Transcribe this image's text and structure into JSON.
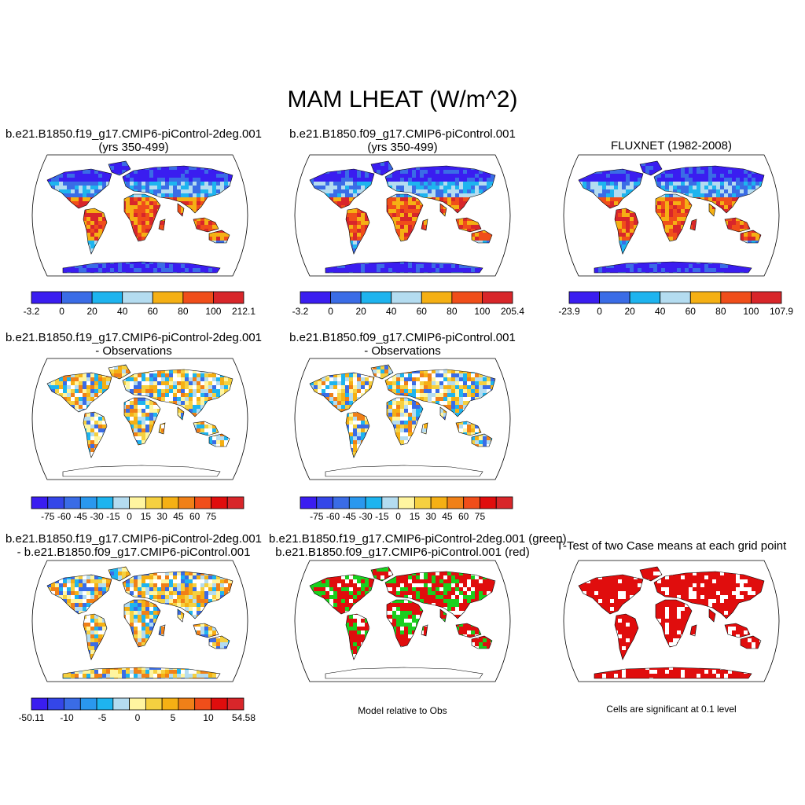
{
  "title": "MAM LHEAT (W/m^2)",
  "panels": [
    {
      "id": "case1",
      "title_line1": "b.e21.B1850.f19_g17.CMIP6-piControl-2deg.001",
      "title_line2": "(yrs 350-499)",
      "field": "absolute",
      "colorbar": {
        "colors": [
          "#3a1df0",
          "#3a6ce6",
          "#1eb4ef",
          "#b4dcf0",
          "#f5b014",
          "#f04e1a",
          "#d8262a"
        ],
        "labels": [
          "-3.2",
          "0",
          "20",
          "40",
          "60",
          "80",
          "100",
          "212.1"
        ]
      }
    },
    {
      "id": "case2",
      "title_line1": "b.e21.B1850.f09_g17.CMIP6-piControl.001",
      "title_line2": "(yrs 350-499)",
      "field": "absolute",
      "colorbar": {
        "colors": [
          "#3a1df0",
          "#3a6ce6",
          "#1eb4ef",
          "#b4dcf0",
          "#f5b014",
          "#f04e1a",
          "#d8262a"
        ],
        "labels": [
          "-3.2",
          "0",
          "20",
          "40",
          "60",
          "80",
          "100",
          "205.4"
        ]
      }
    },
    {
      "id": "obs",
      "title_line1": "FLUXNET (1982-2008)",
      "title_line2": "",
      "field": "obs",
      "colorbar": {
        "colors": [
          "#3a1df0",
          "#3a6ce6",
          "#1eb4ef",
          "#b4dcf0",
          "#f5b014",
          "#f04e1a",
          "#d8262a"
        ],
        "labels": [
          "-23.9",
          "0",
          "20",
          "40",
          "60",
          "80",
          "100",
          "107.9"
        ]
      }
    },
    {
      "id": "case1_minus_obs",
      "title_line1": "b.e21.B1850.f19_g17.CMIP6-piControl-2deg.001",
      "title_line2": "- Observations",
      "field": "bias",
      "colorbar": {
        "colors": [
          "#3a1df0",
          "#3446e8",
          "#3a6ce6",
          "#2a98ee",
          "#1eb4ef",
          "#b4dcf0",
          "#fff5a0",
          "#f5d040",
          "#f5b014",
          "#f08018",
          "#f04e1a",
          "#e00d0d",
          "#d8262a"
        ],
        "labels": [
          "-75",
          "-60",
          "-45",
          "-30",
          "-15",
          "0",
          "15",
          "30",
          "45",
          "60",
          "75"
        ]
      }
    },
    {
      "id": "case2_minus_obs",
      "title_line1": "b.e21.B1850.f09_g17.CMIP6-piControl.001",
      "title_line2": "- Observations",
      "field": "bias",
      "colorbar": {
        "colors": [
          "#3a1df0",
          "#3446e8",
          "#3a6ce6",
          "#2a98ee",
          "#1eb4ef",
          "#b4dcf0",
          "#fff5a0",
          "#f5d040",
          "#f5b014",
          "#f08018",
          "#f04e1a",
          "#e00d0d",
          "#d8262a"
        ],
        "labels": [
          "-75",
          "-60",
          "-45",
          "-30",
          "-15",
          "0",
          "15",
          "30",
          "45",
          "60",
          "75"
        ]
      }
    },
    {
      "id": "case_diff",
      "title_line1": "b.e21.B1850.f19_g17.CMIP6-piControl-2deg.001",
      "title_line2": "- b.e21.B1850.f09_g17.CMIP6-piControl.001",
      "field": "diff",
      "colorbar": {
        "colors": [
          "#3a1df0",
          "#3446e8",
          "#3a6ce6",
          "#2a98ee",
          "#1eb4ef",
          "#b4dcf0",
          "#fff5a0",
          "#f5d040",
          "#f5b014",
          "#f08018",
          "#f04e1a",
          "#e00d0d",
          "#d8262a"
        ],
        "labels": [
          "-50.11",
          "-10",
          "-5",
          "0",
          "5",
          "10",
          "54.58"
        ]
      }
    },
    {
      "id": "model_relative",
      "title_line1": "b.e21.B1850.f19_g17.CMIP6-piControl-2deg.001 (green)",
      "title_line2": "b.e21.B1850.f09_g17.CMIP6-piControl.001 (red)",
      "field": "greenred",
      "note": "Model relative to Obs"
    },
    {
      "id": "ttest",
      "title_line1": "T-Test of two Case means at each grid point",
      "title_line2": "",
      "field": "ttest",
      "note": "Cells are significant at 0.1 level"
    }
  ]
}
